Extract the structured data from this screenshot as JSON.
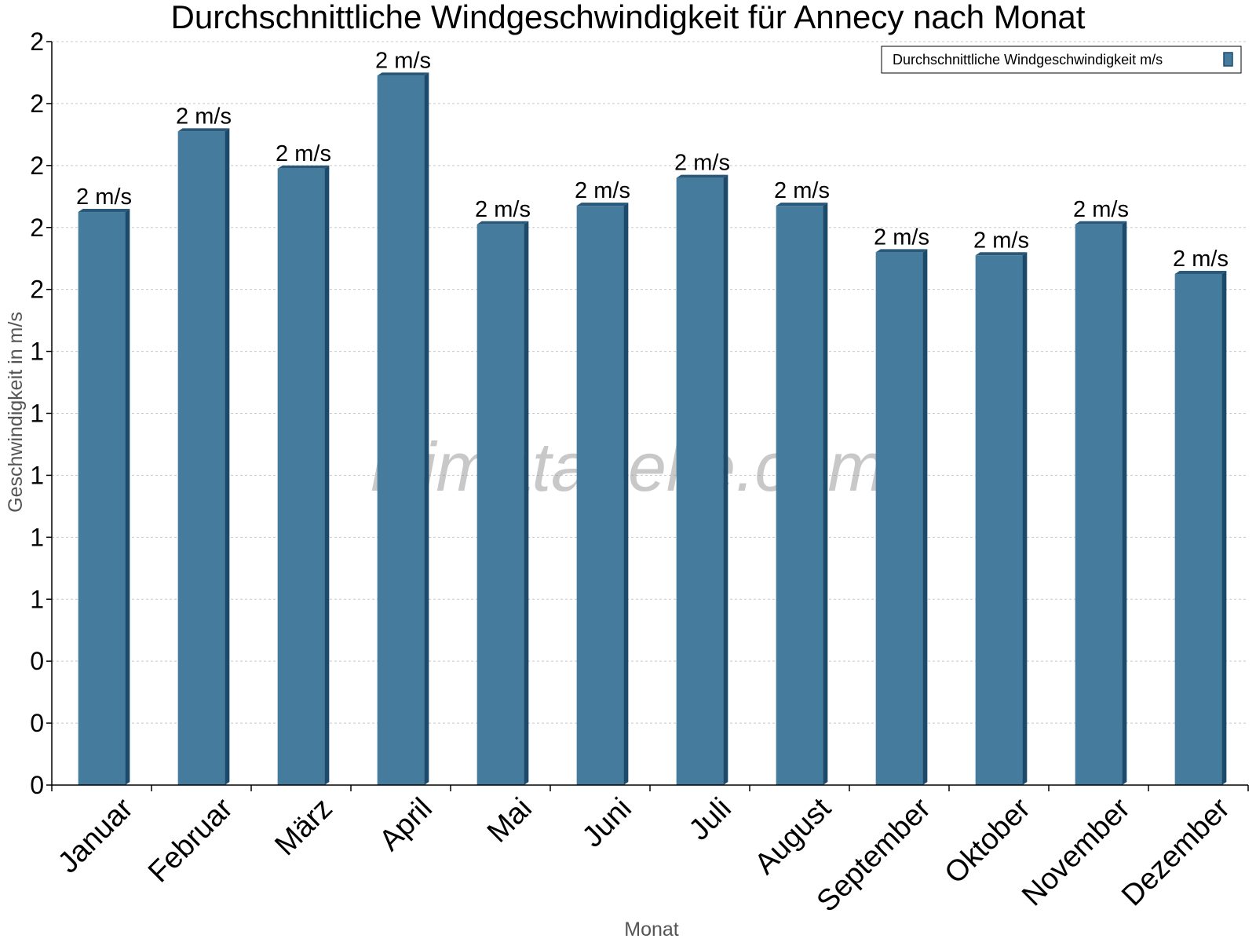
{
  "chart_data": {
    "type": "bar",
    "title": "Durchschnittliche Windgeschwindigkeit für Annecy nach Monat",
    "xlabel": "Monat",
    "ylabel": "Geschwindigkeit in m/s",
    "categories": [
      "Januar",
      "Februar",
      "März",
      "April",
      "Mai",
      "Juni",
      "Juli",
      "August",
      "September",
      "Oktober",
      "November",
      "Dezember"
    ],
    "series": [
      {
        "name": "Durchschnittliche Windgeschwindigkeit m/s",
        "values": [
          1.85,
          2.11,
          1.99,
          2.29,
          1.81,
          1.87,
          1.96,
          1.87,
          1.72,
          1.71,
          1.81,
          1.65
        ],
        "labels": [
          "2 m/s",
          "2 m/s",
          "2 m/s",
          "2 m/s",
          "2 m/s",
          "2 m/s",
          "2 m/s",
          "2 m/s",
          "2 m/s",
          "2 m/s",
          "2 m/s",
          "2 m/s"
        ]
      }
    ],
    "ylim": [
      0,
      2.4
    ],
    "yticks": [
      0,
      0.2,
      0.4,
      0.6,
      0.8,
      1.0,
      1.2,
      1.4,
      1.6,
      1.8,
      2.0,
      2.2,
      2.4
    ],
    "ytick_labels": [
      "0",
      "0",
      "0",
      "1",
      "1",
      "1",
      "1",
      "1",
      "2",
      "2",
      "2",
      "2",
      "2"
    ],
    "grid": true,
    "legend_position": "top-right",
    "watermark": "klimatabelle.com",
    "colors": {
      "bar_face": "#457b9d",
      "bar_side": "#1c4a6b",
      "bar_top": "#2a5878",
      "grid": "#c8c8c8",
      "axis": "#000000"
    }
  }
}
